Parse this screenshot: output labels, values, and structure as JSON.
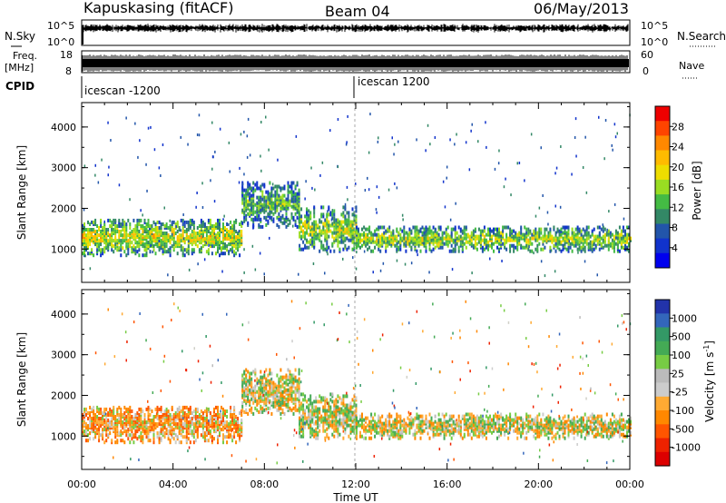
{
  "header": {
    "station": "Kapuskasing (fitACF)",
    "beam": "Beam 04",
    "date": "06/May/2013"
  },
  "strips": {
    "nsky_label": "N.Sky",
    "nsky_ticks": [
      "10^5",
      "10^0"
    ],
    "nsearch_label": "N.Search",
    "nsearch_ticks": [
      "10^5",
      "10^0"
    ],
    "freq_label_1": "Freq.",
    "freq_label_2": "[MHz]",
    "freq_ticks": [
      "18",
      "8"
    ],
    "nave_label": "Nave",
    "nave_ticks": [
      "60",
      "0"
    ],
    "cpid_label": "CPID",
    "cpid_segments": [
      "icescan -1200",
      "icescan 1200"
    ]
  },
  "power_panel": {
    "ylabel": "Slant Range [km]",
    "yticks": [
      "4000",
      "3000",
      "2000",
      "1000"
    ],
    "colorbar_label": "Power [dB]",
    "colorbar_ticks": [
      "28",
      "24",
      "20",
      "16",
      "12",
      "8",
      "4"
    ],
    "colorbar_colors": [
      "#ee0000",
      "#ff4400",
      "#ff8800",
      "#ffbb00",
      "#eedd00",
      "#99dd22",
      "#44bb44",
      "#338866",
      "#2255aa",
      "#1133cc",
      "#0000ee"
    ]
  },
  "velocity_panel": {
    "ylabel": "Slant Range [km]",
    "yticks": [
      "4000",
      "3000",
      "2000",
      "1000"
    ],
    "colorbar_label": "Velocity [m s",
    "colorbar_unit_sup": "-1",
    "colorbar_unit_close": "]",
    "colorbar_ticks": [
      "1000",
      "500",
      "100",
      "25",
      "-25",
      "-100",
      "-500",
      "-1000"
    ],
    "colorbar_colors": [
      "#2233aa",
      "#3366bb",
      "#339966",
      "#44aa55",
      "#77cc44",
      "#bbbbbb",
      "#cccccc",
      "#ffaa33",
      "#ff8800",
      "#ff5500",
      "#ee2200",
      "#dd0000"
    ]
  },
  "xaxis": {
    "label": "Time UT",
    "ticks": [
      "00:00",
      "04:00",
      "08:00",
      "12:00",
      "16:00",
      "20:00",
      "00:00"
    ]
  },
  "chart_data": {
    "type": "heatmap",
    "title": "Kapuskasing (fitACF)",
    "subtitle": "Beam 04 — 06/May/2013",
    "xlabel": "Time UT",
    "ylabel": "Slant Range [km]",
    "xlim_hours": [
      0,
      24
    ],
    "ylim_km": [
      180,
      4600
    ],
    "panels": [
      {
        "name": "Power",
        "unit": "dB",
        "scale": [
          0,
          30
        ],
        "echo_bands": [
          {
            "t_start_h": 0.0,
            "t_end_h": 7.0,
            "r_min_km": 800,
            "r_max_km": 1700,
            "typical_dB": 18
          },
          {
            "t_start_h": 7.0,
            "t_end_h": 9.5,
            "r_min_km": 1500,
            "r_max_km": 2600,
            "typical_dB": 12
          },
          {
            "t_start_h": 9.5,
            "t_end_h": 12.0,
            "r_min_km": 900,
            "r_max_km": 2000,
            "typical_dB": 16
          },
          {
            "t_start_h": 12.0,
            "t_end_h": 24.0,
            "r_min_km": 900,
            "r_max_km": 1500,
            "typical_dB": 16
          }
        ]
      },
      {
        "name": "Velocity",
        "unit": "m s-1",
        "scale": [
          -1000,
          1000
        ],
        "echo_bands": [
          {
            "t_start_h": 0.0,
            "t_end_h": 7.0,
            "r_min_km": 800,
            "r_max_km": 1700,
            "typical_ms": -200
          },
          {
            "t_start_h": 7.0,
            "t_end_h": 9.5,
            "r_min_km": 1500,
            "r_max_km": 2600,
            "typical_ms": 0
          },
          {
            "t_start_h": 9.5,
            "t_end_h": 12.0,
            "r_min_km": 900,
            "r_max_km": 2000,
            "typical_ms": 50
          },
          {
            "t_start_h": 12.0,
            "t_end_h": 24.0,
            "r_min_km": 900,
            "r_max_km": 1500,
            "typical_ms": 0
          }
        ]
      }
    ],
    "cpid": [
      {
        "label": "icescan -1200",
        "t_start_h": 0.0,
        "t_end_h": 12.0
      },
      {
        "label": "icescan 1200",
        "t_start_h": 12.0,
        "t_end_h": 24.0
      }
    ]
  }
}
